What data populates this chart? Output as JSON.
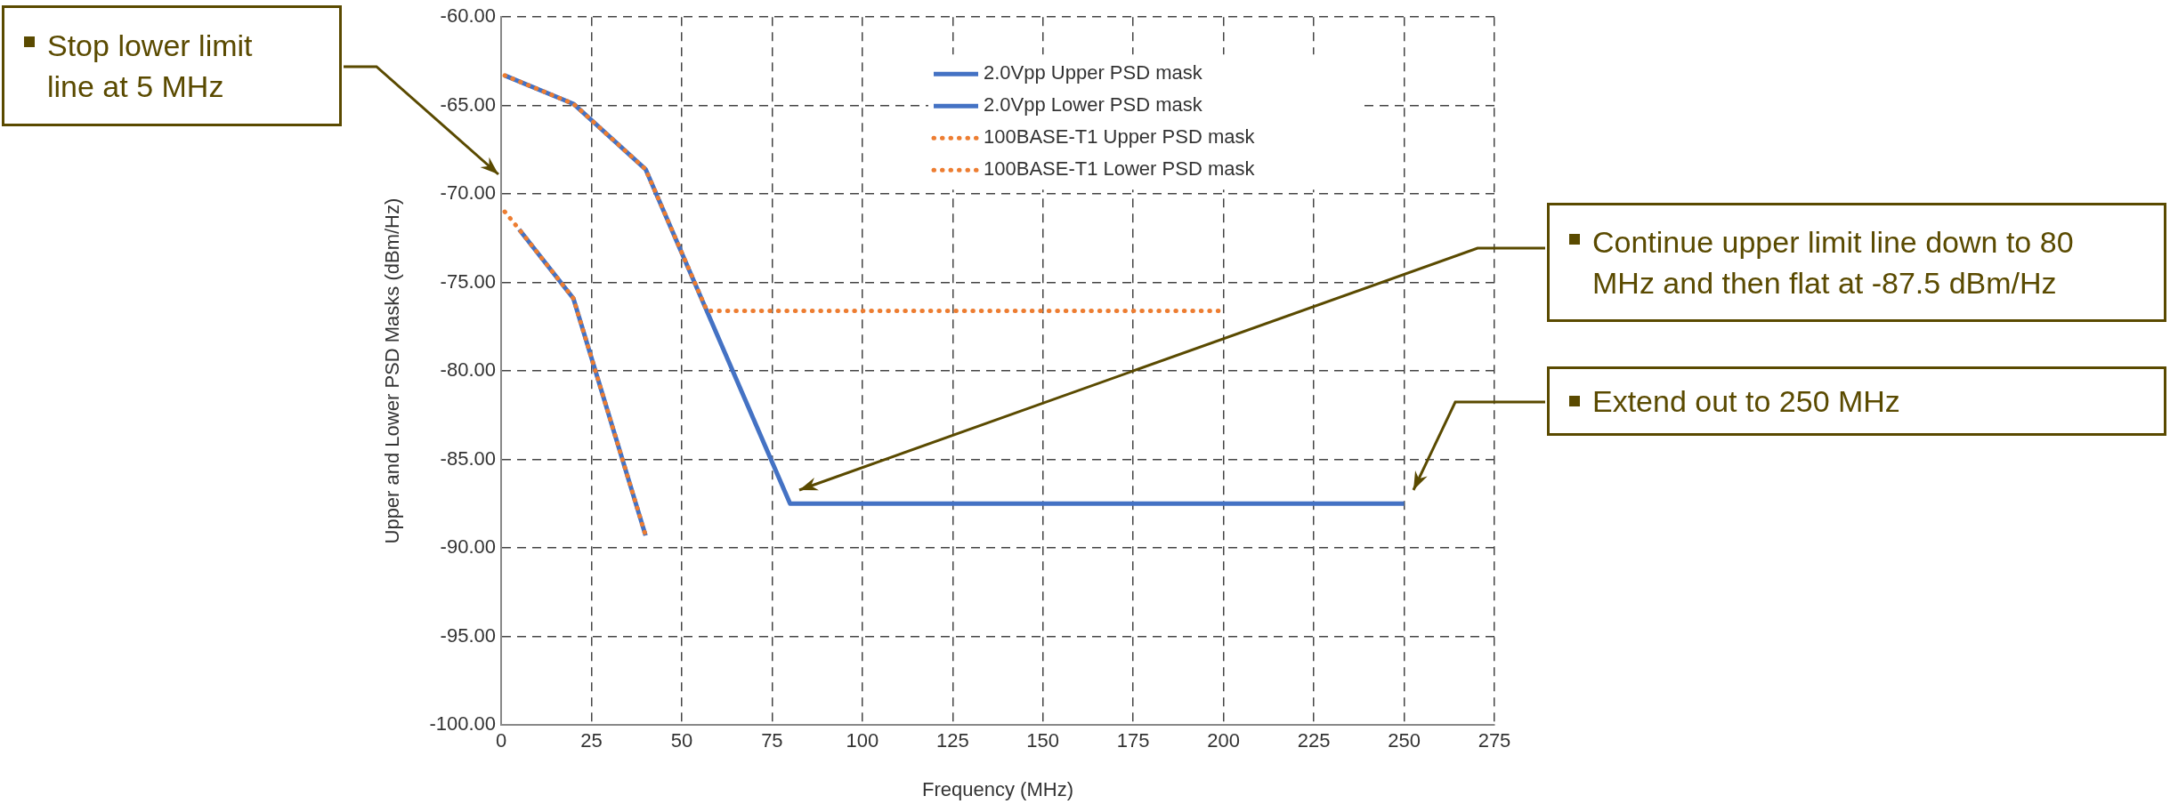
{
  "chart_data": {
    "type": "line",
    "xlabel": "Frequency (MHz)",
    "ylabel": "Upper and Lower PSD Masks (dBm/Hz)",
    "xlim": [
      0,
      275
    ],
    "xticks": [
      0,
      25,
      50,
      75,
      100,
      125,
      150,
      175,
      200,
      225,
      250,
      275
    ],
    "ylim": [
      -100,
      -60
    ],
    "yticks": [
      {
        "value": -60,
        "label": "-60.00"
      },
      {
        "value": -65,
        "label": "-65.00"
      },
      {
        "value": -70,
        "label": "-70.00"
      },
      {
        "value": -75,
        "label": "-75.00"
      },
      {
        "value": -80,
        "label": "-80.00"
      },
      {
        "value": -85,
        "label": "-85.00"
      },
      {
        "value": -90,
        "label": "-90.00"
      },
      {
        "value": -95,
        "label": "-95.00"
      },
      {
        "value": -100,
        "label": "-100.00"
      }
    ],
    "grid": true,
    "legend": "top right",
    "marker": "none",
    "series": [
      {
        "name": "2.0Vpp Upper PSD mask",
        "color": "#4472c4",
        "line_style": "solid",
        "x": [
          1,
          20,
          40,
          80,
          250
        ],
        "values": [
          -63.3,
          -64.9,
          -68.6,
          -87.5,
          -87.5
        ]
      },
      {
        "name": "2.0Vpp Lower PSD mask",
        "color": "#4472c4",
        "line_style": "solid",
        "x": [
          5,
          20,
          40
        ],
        "values": [
          -72.0,
          -75.9,
          -89.3
        ]
      },
      {
        "name": "100BASE-T1 Upper PSD mask",
        "color": "#ed7d31",
        "line_style": "dotted",
        "x": [
          1,
          20,
          40,
          57,
          200
        ],
        "values": [
          -63.3,
          -64.9,
          -68.6,
          -76.6,
          -76.6
        ]
      },
      {
        "name": "100BASE-T1 Lower PSD mask",
        "color": "#ed7d31",
        "line_style": "dotted",
        "x": [
          1,
          5,
          20,
          40
        ],
        "values": [
          -71.0,
          -72.0,
          -75.9,
          -89.3
        ]
      }
    ],
    "annotations": [
      "Stop lower limit line at 5 MHz",
      "Continue upper limit line down to 80 MHz and then flat at -87.5 dBm/Hz",
      "Extend out to 250 MHz"
    ]
  }
}
